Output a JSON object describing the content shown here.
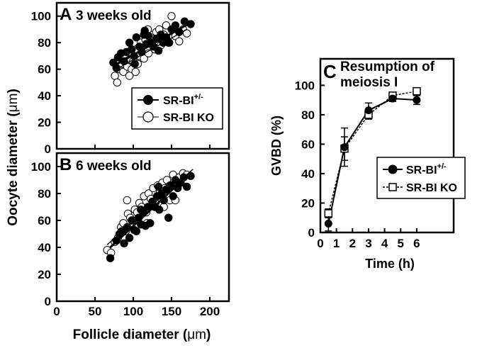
{
  "axes": {
    "y_label_prefix": "Oocyte diameter (",
    "x_label_prefix": "Follicle diameter (",
    "label_unit": "μm",
    "label_suffix": ")"
  },
  "chart_data": [
    {
      "type": "scatter",
      "panel_letter": "A",
      "title": "3 weeks old",
      "xlim": [
        0,
        225
      ],
      "ylim": [
        0,
        110
      ],
      "xticks": [
        "0",
        "50",
        "100",
        "150",
        "200"
      ],
      "yticks": [
        "0",
        "20",
        "40",
        "60",
        "80",
        "100"
      ],
      "legend": [
        {
          "name": "SR-BI",
          "superscript": "+/-",
          "marker": "filled-circle"
        },
        {
          "name": "SR-BI KO",
          "marker": "open-circle"
        }
      ],
      "series": [
        {
          "name": "SR-BI +/-",
          "points": [
            [
              74,
              65
            ],
            [
              78,
              61
            ],
            [
              80,
              69
            ],
            [
              84,
              72
            ],
            [
              88,
              66
            ],
            [
              91,
              73
            ],
            [
              95,
              80
            ],
            [
              98,
              75
            ],
            [
              101,
              70
            ],
            [
              104,
              84
            ],
            [
              108,
              77
            ],
            [
              111,
              73
            ],
            [
              114,
              86
            ],
            [
              117,
              79
            ],
            [
              120,
              85
            ],
            [
              123,
              80
            ],
            [
              126,
              77
            ],
            [
              130,
              83
            ],
            [
              133,
              74
            ],
            [
              136,
              86
            ],
            [
              139,
              80
            ],
            [
              143,
              84
            ],
            [
              147,
              80
            ],
            [
              150,
              90
            ],
            [
              155,
              93
            ],
            [
              160,
              88
            ],
            [
              167,
              96
            ],
            [
              175,
              94
            ],
            [
              115,
              89
            ],
            [
              102,
              64
            ]
          ],
          "fit": [
            [
              73,
              62
            ],
            [
              178,
              96
            ]
          ]
        },
        {
          "name": "SR-BI KO",
          "points": [
            [
              76,
              55
            ],
            [
              79,
              50
            ],
            [
              82,
              60
            ],
            [
              85,
              64
            ],
            [
              87,
              58
            ],
            [
              89,
              70
            ],
            [
              92,
              62
            ],
            [
              94,
              67
            ],
            [
              96,
              73
            ],
            [
              98,
              60
            ],
            [
              100,
              66
            ],
            [
              102,
              71
            ],
            [
              104,
              75
            ],
            [
              106,
              64
            ],
            [
              108,
              70
            ],
            [
              110,
              80
            ],
            [
              112,
              74
            ],
            [
              114,
              68
            ],
            [
              116,
              82
            ],
            [
              118,
              76
            ],
            [
              120,
              72
            ],
            [
              122,
              86
            ],
            [
              124,
              79
            ],
            [
              126,
              83
            ],
            [
              128,
              75
            ],
            [
              130,
              88
            ],
            [
              132,
              81
            ],
            [
              134,
              90
            ],
            [
              136,
              78
            ],
            [
              140,
              86
            ],
            [
              143,
              93
            ],
            [
              146,
              80
            ],
            [
              150,
              100
            ],
            [
              155,
              85
            ],
            [
              160,
              81
            ],
            [
              165,
              90
            ],
            [
              170,
              87
            ],
            [
              95,
              55
            ],
            [
              103,
              58
            ],
            [
              119,
              90
            ]
          ],
          "fit": [
            [
              75,
              59
            ],
            [
              170,
              90
            ]
          ]
        }
      ]
    },
    {
      "type": "scatter",
      "panel_letter": "B",
      "title": "6 weeks old",
      "xlim": [
        0,
        225
      ],
      "ylim": [
        0,
        110
      ],
      "xticks": [
        "0",
        "50",
        "100",
        "150",
        "200"
      ],
      "yticks": [
        "0",
        "20",
        "40",
        "60",
        "80",
        "100"
      ],
      "series": [
        {
          "name": "SR-BI +/-",
          "points": [
            [
              70,
              32
            ],
            [
              78,
              45
            ],
            [
              82,
              50
            ],
            [
              85,
              52
            ],
            [
              88,
              43
            ],
            [
              92,
              55
            ],
            [
              95,
              47
            ],
            [
              98,
              60
            ],
            [
              101,
              53
            ],
            [
              104,
              52
            ],
            [
              107,
              62
            ],
            [
              110,
              57
            ],
            [
              113,
              66
            ],
            [
              116,
              56
            ],
            [
              119,
              70
            ],
            [
              122,
              58
            ],
            [
              125,
              74
            ],
            [
              128,
              70
            ],
            [
              131,
              78
            ],
            [
              134,
              68
            ],
            [
              137,
              80
            ],
            [
              140,
              75
            ],
            [
              143,
              83
            ],
            [
              146,
              62
            ],
            [
              149,
              86
            ],
            [
              152,
              78
            ],
            [
              155,
              90
            ],
            [
              158,
              84
            ],
            [
              162,
              88
            ],
            [
              166,
              92
            ],
            [
              170,
              85
            ],
            [
              175,
              93
            ],
            [
              110,
              68
            ],
            [
              133,
              85
            ]
          ],
          "fit": [
            [
              70,
              40
            ],
            [
              176,
              96
            ]
          ]
        },
        {
          "name": "SR-BI KO",
          "points": [
            [
              66,
              38
            ],
            [
              71,
              36
            ],
            [
              76,
              44
            ],
            [
              80,
              47
            ],
            [
              84,
              55
            ],
            [
              87,
              58
            ],
            [
              90,
              52
            ],
            [
              93,
              65
            ],
            [
              96,
              62
            ],
            [
              99,
              60
            ],
            [
              102,
              68
            ],
            [
              105,
              66
            ],
            [
              108,
              73
            ],
            [
              111,
              70
            ],
            [
              114,
              78
            ],
            [
              117,
              66
            ],
            [
              120,
              80
            ],
            [
              123,
              76
            ],
            [
              126,
              84
            ],
            [
              129,
              73
            ],
            [
              132,
              86
            ],
            [
              135,
              82
            ],
            [
              138,
              88
            ],
            [
              141,
              84
            ],
            [
              144,
              90
            ],
            [
              148,
              86
            ],
            [
              152,
              94
            ],
            [
              156,
              88
            ],
            [
              160,
              92
            ],
            [
              165,
              95
            ],
            [
              170,
              94
            ],
            [
              92,
              75
            ],
            [
              118,
              58
            ],
            [
              140,
              70
            ],
            [
              148,
              75
            ],
            [
              155,
              75
            ]
          ],
          "fit": [
            [
              66,
              42
            ],
            [
              178,
              98
            ]
          ]
        }
      ]
    },
    {
      "type": "line",
      "panel_letter": "C",
      "title": [
        "Resumption of",
        "meiosis I"
      ],
      "xlabel": "Time (h)",
      "ylabel": "GVBD (%)",
      "xlim": [
        0,
        8.3
      ],
      "ylim": [
        0,
        118
      ],
      "xticks": [
        "0",
        "1",
        "2",
        "3",
        "4",
        "5",
        "6"
      ],
      "yticks": [
        "0",
        "20",
        "40",
        "60",
        "80",
        "100"
      ],
      "legend": [
        {
          "name": "SR-BI",
          "superscript": "+/-",
          "marker": "filled-circle",
          "line": "solid"
        },
        {
          "name": "SR-BI KO",
          "marker": "open-square",
          "line": "dotted"
        }
      ],
      "series": [
        {
          "name": "SR-BI +/-",
          "x": [
            0.5,
            1.5,
            3,
            4.5,
            6
          ],
          "y": [
            6,
            58,
            83,
            91,
            90
          ],
          "err": [
            5,
            13,
            5,
            2,
            3
          ]
        },
        {
          "name": "SR-BI KO",
          "x": [
            0.5,
            1.5,
            3,
            4.5,
            6
          ],
          "y": [
            13,
            57,
            80,
            93,
            96
          ],
          "err": [
            3,
            8,
            3,
            2,
            1
          ]
        }
      ]
    }
  ]
}
